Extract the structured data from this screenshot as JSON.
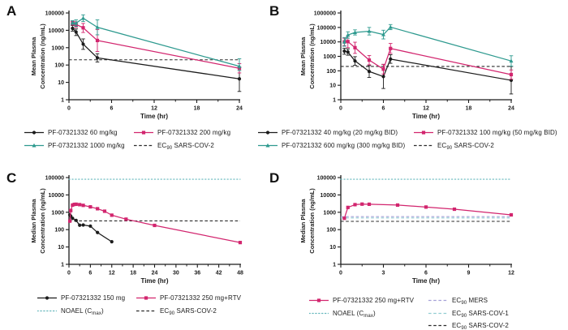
{
  "figure": {
    "background": "#ffffff",
    "description": "Four-panel pharmacokinetic line plots"
  },
  "colors": {
    "black": "#1b1b1b",
    "pink": "#D2256E",
    "teal": "#2E9A8F",
    "noael_dotted": "#66B8BD",
    "mers_dashed": "#A5A0D8",
    "sars_cov_1_dashed": "#92CDD2",
    "sars_cov_2_dashed": "#2b2b2b",
    "text": "#1b1b1b"
  },
  "chart_data": [
    {
      "panel": "A",
      "type": "line",
      "xlabel": "Time (hr)",
      "ylabel_lines": [
        "Mean Plasma",
        "Concentration (ng/mL)"
      ],
      "log_y": true,
      "ylim": [
        1,
        100000
      ],
      "yticks": [
        1,
        10,
        100,
        1000,
        10000,
        100000
      ],
      "xlim": [
        0,
        24
      ],
      "xticks": [
        0,
        6,
        12,
        18,
        24
      ],
      "series": [
        {
          "name": "PF-07321332 60 mg/kg",
          "color": "#1b1b1b",
          "marker": "circle",
          "x": [
            0.5,
            1,
            2,
            4,
            24
          ],
          "y": [
            13000,
            8000,
            1600,
            260,
            16
          ],
          "err_lo": [
            9000,
            5000,
            800,
            150,
            3
          ],
          "err_hi": [
            19000,
            12000,
            3200,
            450,
            75
          ]
        },
        {
          "name": "PF-07321332 200 mg/kg",
          "color": "#D2256E",
          "marker": "square",
          "x": [
            0.5,
            1,
            2,
            4,
            24
          ],
          "y": [
            26000,
            22000,
            14000,
            2600,
            65
          ],
          "err_lo": [
            20000,
            15000,
            7500,
            600,
            35
          ],
          "err_hi": [
            34000,
            31000,
            25000,
            11000,
            120
          ]
        },
        {
          "name": "PF-07321332 1000 mg/kg",
          "color": "#2E9A8F",
          "marker": "triangle",
          "x": [
            0.5,
            1,
            2,
            4,
            24
          ],
          "y": [
            28000,
            26000,
            50000,
            15000,
            85
          ],
          "err_lo": [
            22000,
            17000,
            32000,
            5500,
            48
          ],
          "err_hi": [
            36000,
            40000,
            78000,
            40000,
            230
          ]
        }
      ],
      "hlines": [
        {
          "name": "EC90 SARS-COV-2",
          "y": 200,
          "style": "dashed",
          "color": "#2b2b2b"
        }
      ],
      "legend": {
        "columns": [
          {
            "x": 30,
            "y": 156,
            "items": [
              {
                "parts": [
                  {
                    "t": "PF-07321332 60 mg/kg"
                  }
                ],
                "swatch": {
                  "type": "series",
                  "color": "#1b1b1b",
                  "marker": "circle"
                }
              },
              {
                "parts": [
                  {
                    "t": "PF-07321332 1000 mg/kg"
                  }
                ],
                "swatch": {
                  "type": "series",
                  "color": "#2E9A8F",
                  "marker": "triangle"
                }
              }
            ]
          },
          {
            "x": 165,
            "y": 156,
            "items": [
              {
                "parts": [
                  {
                    "t": "PF-07321332 200 mg/kg"
                  }
                ],
                "swatch": {
                  "type": "series",
                  "color": "#D2256E",
                  "marker": "square"
                }
              },
              {
                "parts": [
                  {
                    "t": "EC"
                  },
                  {
                    "t": "90",
                    "sub": true
                  },
                  {
                    "t": " SARS-COV-2"
                  }
                ],
                "swatch": {
                  "type": "line",
                  "color": "#2b2b2b",
                  "dash": "dashed"
                }
              }
            ]
          }
        ]
      }
    },
    {
      "panel": "B",
      "type": "line",
      "xlabel": "Time (hr)",
      "ylabel_lines": [
        "Mean Plasma",
        "Concentration (ng/mL)"
      ],
      "log_y": true,
      "ylim": [
        1,
        1000000
      ],
      "yticks": [
        1,
        10,
        100,
        1000,
        10000,
        100000,
        1000000
      ],
      "xlim": [
        0,
        24
      ],
      "xticks": [
        0,
        6,
        12,
        18,
        24
      ],
      "series": [
        {
          "name": "PF-07321332 40 mg/kg (20 mg/kg BID)",
          "color": "#1b1b1b",
          "marker": "circle",
          "x": [
            0.5,
            1,
            2,
            4,
            6,
            7,
            24
          ],
          "y": [
            2300,
            2000,
            480,
            90,
            40,
            650,
            22
          ],
          "err_lo": [
            1400,
            1200,
            240,
            35,
            6,
            330,
            2.5
          ],
          "err_hi": [
            3600,
            3300,
            950,
            230,
            280,
            1300,
            200
          ]
        },
        {
          "name": "PF-07321332 100 mg/kg (50 mg/kg BID)",
          "color": "#D2256E",
          "marker": "square",
          "x": [
            0.5,
            1,
            2,
            4,
            6,
            7,
            24
          ],
          "y": [
            10000,
            10500,
            4000,
            550,
            130,
            3500,
            55
          ],
          "err_lo": [
            5500,
            4000,
            1600,
            260,
            60,
            1600,
            26
          ],
          "err_hi": [
            18000,
            26000,
            9500,
            1150,
            280,
            7800,
            115
          ]
        },
        {
          "name": "PF-07321332 600 mg/kg (300 mg/kg BID)",
          "color": "#2E9A8F",
          "marker": "triangle",
          "x": [
            0.5,
            1,
            2,
            4,
            6,
            7,
            24
          ],
          "y": [
            10000,
            30000,
            45000,
            55000,
            32000,
            105000,
            480
          ],
          "err_lo": [
            5000,
            18000,
            30000,
            30000,
            16000,
            70000,
            210
          ],
          "err_hi": [
            20000,
            50000,
            68000,
            100000,
            64000,
            158000,
            1100
          ]
        }
      ],
      "hlines": [
        {
          "name": "EC90 SARS-COV-2",
          "y": 200,
          "style": "dashed",
          "color": "#2b2b2b"
        }
      ],
      "legend": {
        "columns": [
          {
            "x": -32,
            "y": 156,
            "items": [
              {
                "parts": [
                  {
                    "t": "PF-07321332 40 mg/kg (20 mg/kg BID)"
                  }
                ],
                "swatch": {
                  "type": "series",
                  "color": "#1b1b1b",
                  "marker": "circle"
                }
              },
              {
                "parts": [
                  {
                    "t": "PF-07321332 600 mg/kg (300 mg/kg BID)"
                  }
                ],
                "swatch": {
                  "type": "series",
                  "color": "#2E9A8F",
                  "marker": "triangle"
                }
              }
            ]
          },
          {
            "x": 160,
            "y": 156,
            "items": [
              {
                "parts": [
                  {
                    "t": "PF-07321332 100 mg/kg (50 mg/kg BID)"
                  }
                ],
                "swatch": {
                  "type": "series",
                  "color": "#D2256E",
                  "marker": "square"
                }
              },
              {
                "parts": [
                  {
                    "t": "EC"
                  },
                  {
                    "t": "90",
                    "sub": true
                  },
                  {
                    "t": " SARS-COV-2"
                  }
                ],
                "swatch": {
                  "type": "line",
                  "color": "#2b2b2b",
                  "dash": "dashed"
                }
              }
            ]
          }
        ]
      }
    },
    {
      "panel": "C",
      "type": "line",
      "xlabel": "Time (hr)",
      "ylabel_lines": [
        "Median Plasma",
        "Concentration (ng/mL)"
      ],
      "log_y": true,
      "ylim": [
        1,
        100000
      ],
      "yticks": [
        1,
        10,
        100,
        1000,
        10000,
        100000
      ],
      "xlim": [
        0,
        48
      ],
      "xticks": [
        0,
        6,
        12,
        18,
        24,
        30,
        36,
        42,
        48
      ],
      "series": [
        {
          "name": "PF-07321332 150 mg",
          "color": "#1b1b1b",
          "marker": "circle",
          "x": [
            0.25,
            0.5,
            1,
            2,
            3,
            4,
            6,
            8,
            12
          ],
          "y": [
            700,
            600,
            450,
            340,
            180,
            185,
            160,
            68,
            20
          ]
        },
        {
          "name": "PF-07321332 250 mg+RTV",
          "color": "#D2256E",
          "marker": "square",
          "x": [
            0.25,
            0.5,
            1,
            1.5,
            2,
            3,
            4,
            6,
            8,
            10,
            12,
            16,
            24,
            48
          ],
          "y": [
            310,
            1250,
            2600,
            2850,
            2900,
            2750,
            2500,
            2050,
            1600,
            1150,
            680,
            400,
            175,
            18
          ]
        }
      ],
      "hlines": [
        {
          "name": "NOAEL (Cmax)",
          "y": 80000,
          "style": "dotted",
          "color": "#66B8BD"
        },
        {
          "name": "EC90 SARS-COV-2",
          "y": 320,
          "style": "dashed",
          "color": "#2b2b2b"
        }
      ],
      "legend": {
        "columns": [
          {
            "x": 46,
            "y": 157,
            "items": [
              {
                "parts": [
                  {
                    "t": "PF-07321332 150 mg"
                  }
                ],
                "swatch": {
                  "type": "series",
                  "color": "#1b1b1b",
                  "marker": "circle"
                }
              },
              {
                "parts": [
                  {
                    "t": "NOAEL (C"
                  },
                  {
                    "t": "max",
                    "sub": true
                  },
                  {
                    "t": ")"
                  }
                ],
                "swatch": {
                  "type": "line",
                  "color": "#66B8BD",
                  "dash": "dotted"
                }
              }
            ]
          },
          {
            "x": 168,
            "y": 157,
            "items": [
              {
                "parts": [
                  {
                    "t": "PF-07321332 250 mg+RTV"
                  }
                ],
                "swatch": {
                  "type": "series",
                  "color": "#D2256E",
                  "marker": "square"
                }
              },
              {
                "parts": [
                  {
                    "t": "EC"
                  },
                  {
                    "t": "90",
                    "sub": true
                  },
                  {
                    "t": " SARS-COV-2"
                  }
                ],
                "swatch": {
                  "type": "line",
                  "color": "#2b2b2b",
                  "dash": "dashed"
                }
              }
            ]
          }
        ]
      }
    },
    {
      "panel": "D",
      "type": "line",
      "xlabel": "Time (hr)",
      "ylabel_lines": [
        "Median Plasma",
        "Concentration (ng/mL)"
      ],
      "log_y": true,
      "ylim": [
        1,
        100000
      ],
      "yticks": [
        1,
        10,
        100,
        1000,
        10000,
        100000
      ],
      "xlim": [
        0,
        12
      ],
      "xticks": [
        0,
        3,
        6,
        9,
        12
      ],
      "series": [
        {
          "name": "PF-07321332 250 mg+RTV",
          "color": "#D2256E",
          "marker": "square",
          "x": [
            0.25,
            0.5,
            1,
            1.5,
            2,
            4,
            6,
            8,
            12
          ],
          "y": [
            450,
            1900,
            2750,
            2950,
            2900,
            2600,
            2000,
            1500,
            710
          ]
        }
      ],
      "hlines": [
        {
          "name": "NOAEL (Cmax)",
          "y": 80000,
          "style": "dotted",
          "color": "#66B8BD"
        },
        {
          "name": "EC90 MERS",
          "y": 560,
          "style": "dashed",
          "color": "#A5A0D8"
        },
        {
          "name": "EC90 SARS-COV-1",
          "y": 470,
          "style": "dashed",
          "color": "#92CDD2"
        },
        {
          "name": "EC90 SARS-COV-2",
          "y": 300,
          "style": "dashed",
          "color": "#2b2b2b"
        }
      ],
      "legend": {
        "columns": [
          {
            "x": 31,
            "y": 160,
            "items": [
              {
                "parts": [
                  {
                    "t": "PF-07321332 250 mg+RTV"
                  }
                ],
                "swatch": {
                  "type": "series",
                  "color": "#D2256E",
                  "marker": "square"
                }
              },
              {
                "parts": [
                  {
                    "t": "NOAEL (C"
                  },
                  {
                    "t": "max",
                    "sub": true
                  },
                  {
                    "t": ")"
                  }
                ],
                "swatch": {
                  "type": "line",
                  "color": "#66B8BD",
                  "dash": "dotted"
                }
              }
            ]
          },
          {
            "x": 178,
            "y": 160,
            "items": [
              {
                "parts": [
                  {
                    "t": "EC"
                  },
                  {
                    "t": "90",
                    "sub": true
                  },
                  {
                    "t": " MERS"
                  }
                ],
                "swatch": {
                  "type": "line",
                  "color": "#A5A0D8",
                  "dash": "dashed"
                }
              },
              {
                "parts": [
                  {
                    "t": "EC"
                  },
                  {
                    "t": "90",
                    "sub": true
                  },
                  {
                    "t": " SARS-COV-1"
                  }
                ],
                "swatch": {
                  "type": "line",
                  "color": "#92CDD2",
                  "dash": "dashed"
                }
              },
              {
                "parts": [
                  {
                    "t": "EC"
                  },
                  {
                    "t": "90",
                    "sub": true
                  },
                  {
                    "t": " SARS-COV-2"
                  }
                ],
                "swatch": {
                  "type": "line",
                  "color": "#2b2b2b",
                  "dash": "dashed"
                }
              }
            ]
          }
        ]
      }
    }
  ]
}
